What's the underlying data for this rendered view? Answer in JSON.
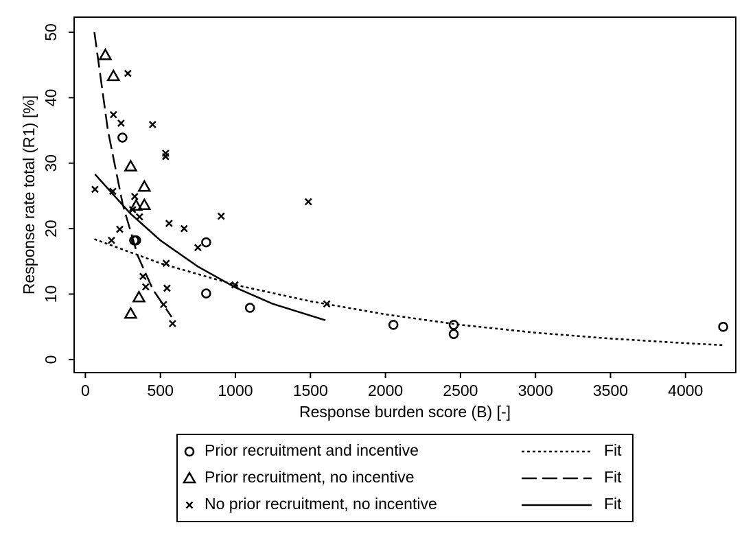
{
  "chart_data": {
    "type": "scatter",
    "xlabel": "Response burden score (B) [-]",
    "ylabel": "Response rate total (R1) [%]",
    "xlim": [
      -75,
      4335
    ],
    "ylim": [
      -2,
      52.3
    ],
    "xticks": [
      0,
      500,
      1000,
      1500,
      2000,
      2500,
      3000,
      3500,
      4000
    ],
    "yticks": [
      0,
      10,
      20,
      30,
      40,
      50
    ],
    "color": "#000000",
    "series": [
      {
        "name": "Prior recruitment and incentive",
        "marker": "circle",
        "x": [
          247,
          325,
          338,
          805,
          805,
          1097,
          2053,
          2455,
          2455,
          4251
        ],
        "values": [
          33.9,
          18.2,
          18.2,
          17.9,
          10.1,
          7.9,
          5.3,
          5.3,
          3.9,
          5.0
        ]
      },
      {
        "name": "Prior recruitment, no incentive",
        "marker": "triangle",
        "x": [
          133,
          187,
          302,
          393,
          393,
          338,
          357,
          302
        ],
        "values": [
          46.5,
          43.3,
          29.5,
          26.4,
          23.6,
          23.5,
          9.5,
          7.0
        ]
      },
      {
        "name": "No prior recruitment, no incentive",
        "marker": "cross",
        "x": [
          64,
          283,
          187,
          238,
          448,
          535,
          535,
          183,
          329,
          361,
          315,
          229,
          174,
          558,
          658,
          750,
          905,
          1486,
          539,
          384,
          402,
          544,
          521,
          581,
          997,
          1609
        ],
        "values": [
          26.0,
          43.7,
          37.4,
          36.1,
          35.9,
          31.5,
          31.0,
          25.7,
          24.9,
          21.8,
          22.9,
          19.9,
          18.2,
          20.8,
          20.0,
          17.1,
          21.9,
          24.1,
          14.7,
          12.7,
          11.1,
          10.9,
          8.4,
          5.5,
          11.4,
          8.5
        ]
      }
    ],
    "fits": [
      {
        "name": "Fit",
        "dash": "4,4",
        "x": [
          60,
          500,
          1000,
          1500,
          2000,
          2500,
          3000,
          3500,
          4000,
          4250
        ],
        "values": [
          18.4,
          14.7,
          11.4,
          8.9,
          6.9,
          5.3,
          4.1,
          3.2,
          2.5,
          2.2
        ]
      },
      {
        "name": "Fit",
        "dash": "22,8",
        "x": [
          60,
          150,
          250,
          350,
          450,
          575
        ],
        "values": [
          50,
          35.0,
          23.6,
          15.8,
          10.7,
          6.5
        ]
      },
      {
        "name": "Fit",
        "dash": "none",
        "x": [
          64,
          300,
          500,
          750,
          1000,
          1250,
          1600
        ],
        "values": [
          28.3,
          22.3,
          18.2,
          14.2,
          11.0,
          8.5,
          6.0
        ]
      }
    ]
  }
}
